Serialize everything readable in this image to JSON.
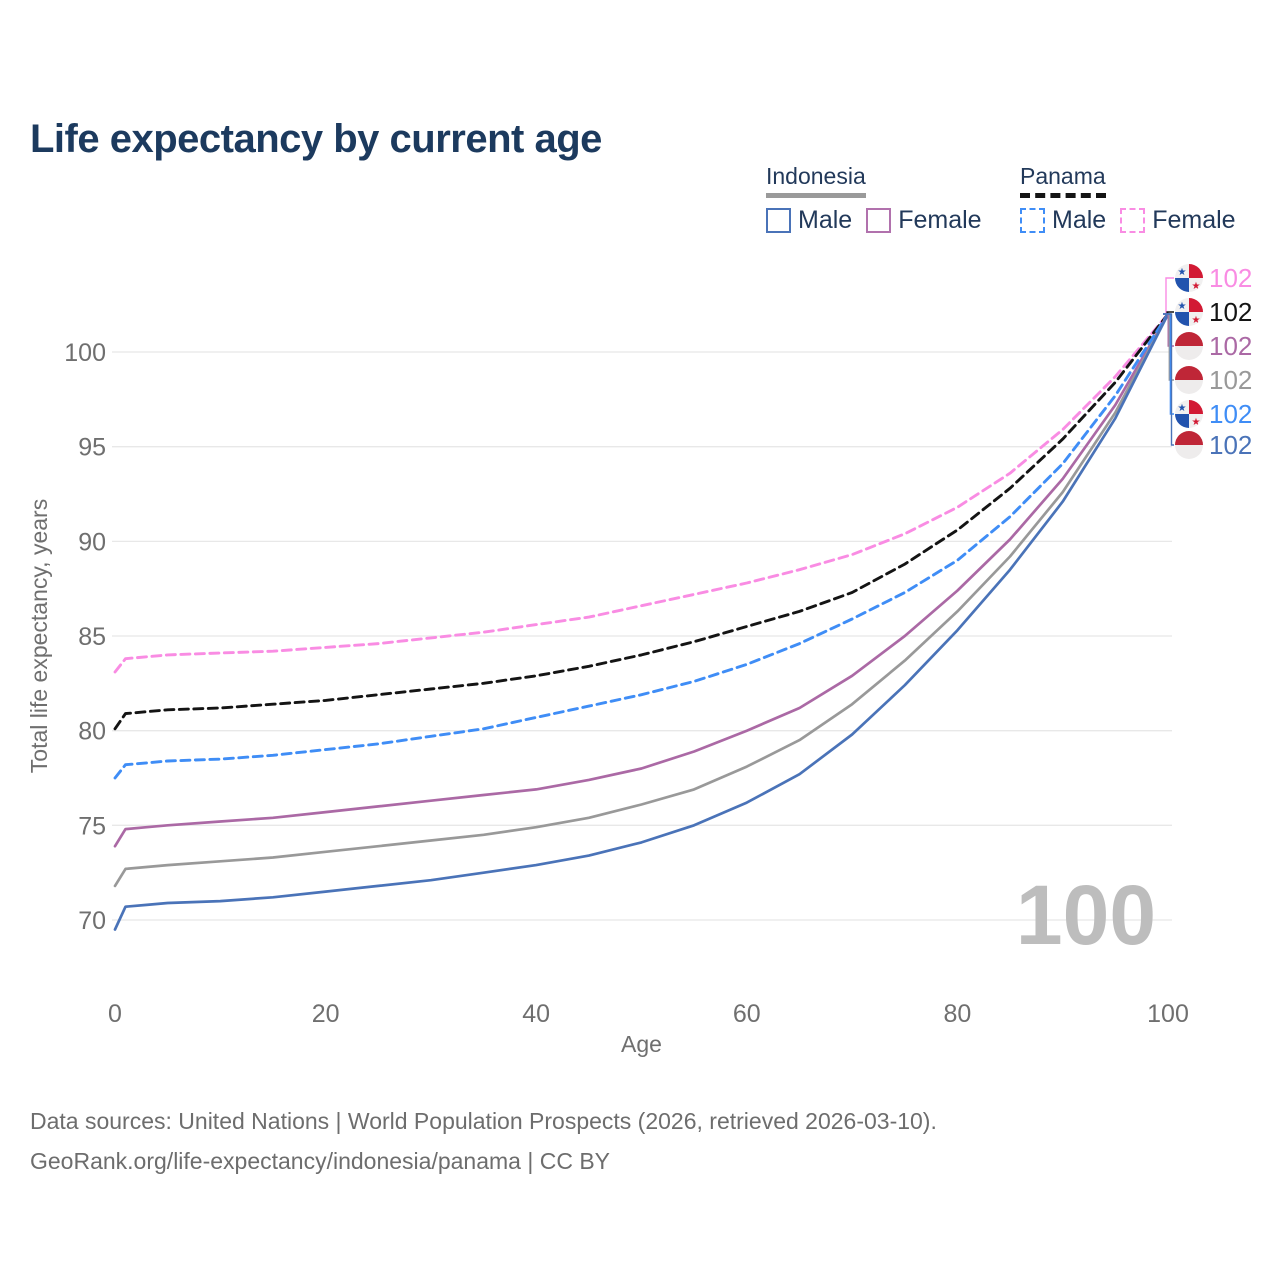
{
  "title": "Life expectancy by current age",
  "legend": {
    "groups": [
      {
        "label": "Indonesia",
        "style": "solid",
        "color": "#9a9a9a",
        "items": [
          {
            "label": "Male",
            "color": "#4a73b8",
            "style": "solid"
          },
          {
            "label": "Female",
            "color": "#b171ad",
            "style": "solid"
          }
        ]
      },
      {
        "label": "Panama",
        "style": "dashed",
        "color": "#141414",
        "items": [
          {
            "label": "Male",
            "color": "#3f8df6",
            "style": "dashed"
          },
          {
            "label": "Female",
            "color": "#f98ce3",
            "style": "dashed"
          }
        ]
      }
    ]
  },
  "chart_data": {
    "type": "line",
    "title": "Life expectancy by current age",
    "xlabel": "Age",
    "ylabel": "Total life expectancy, years",
    "xlim": [
      0,
      100
    ],
    "ylim": [
      68,
      104
    ],
    "x_ticks": [
      0,
      20,
      40,
      60,
      80,
      100
    ],
    "y_ticks": [
      70,
      75,
      80,
      85,
      90,
      95,
      100
    ],
    "grid": "horizontal-only",
    "age_indicator": "100",
    "x": [
      0,
      1,
      3,
      5,
      10,
      15,
      20,
      25,
      30,
      35,
      40,
      45,
      50,
      55,
      60,
      65,
      70,
      75,
      80,
      85,
      90,
      95,
      100
    ],
    "series": [
      {
        "name": "Panama Female",
        "country": "Panama",
        "gender": "female",
        "color": "#f98ce3",
        "dash": true,
        "flag": "panama",
        "end_label": "102",
        "values": [
          83.1,
          83.8,
          83.9,
          84.0,
          84.1,
          84.2,
          84.4,
          84.6,
          84.9,
          85.2,
          85.6,
          86.0,
          86.6,
          87.2,
          87.8,
          88.5,
          89.3,
          90.4,
          91.8,
          93.6,
          95.9,
          98.7,
          102
        ]
      },
      {
        "name": "Panama",
        "country": "Panama",
        "gender": "both",
        "color": "#141414",
        "dash": true,
        "flag": "panama",
        "end_label": "102",
        "values": [
          80.1,
          80.9,
          81.0,
          81.1,
          81.2,
          81.4,
          81.6,
          81.9,
          82.2,
          82.5,
          82.9,
          83.4,
          84.0,
          84.7,
          85.5,
          86.3,
          87.3,
          88.8,
          90.6,
          92.8,
          95.4,
          98.4,
          102
        ]
      },
      {
        "name": "Indonesia Female",
        "country": "Indonesia",
        "gender": "female",
        "color": "#ab69a5",
        "dash": false,
        "flag": "indonesia",
        "end_label": "102",
        "values": [
          73.9,
          74.8,
          74.9,
          75.0,
          75.2,
          75.4,
          75.7,
          76.0,
          76.3,
          76.6,
          76.9,
          77.4,
          78.0,
          78.9,
          80.0,
          81.2,
          82.9,
          85.0,
          87.4,
          90.1,
          93.3,
          97.2,
          102
        ]
      },
      {
        "name": "Indonesia",
        "country": "Indonesia",
        "gender": "both",
        "color": "#999999",
        "dash": false,
        "flag": "indonesia",
        "end_label": "102",
        "values": [
          71.8,
          72.7,
          72.8,
          72.9,
          73.1,
          73.3,
          73.6,
          73.9,
          74.2,
          74.5,
          74.9,
          75.4,
          76.1,
          76.9,
          78.1,
          79.5,
          81.4,
          83.7,
          86.3,
          89.2,
          92.6,
          96.8,
          102
        ]
      },
      {
        "name": "Panama Male",
        "country": "Panama",
        "gender": "male",
        "color": "#3f8df6",
        "dash": true,
        "flag": "panama",
        "end_label": "102",
        "values": [
          77.5,
          78.2,
          78.3,
          78.4,
          78.5,
          78.7,
          79.0,
          79.3,
          79.7,
          80.1,
          80.7,
          81.3,
          81.9,
          82.6,
          83.5,
          84.6,
          85.9,
          87.3,
          89.0,
          91.3,
          94.1,
          97.7,
          102
        ]
      },
      {
        "name": "Indonesia Male",
        "country": "Indonesia",
        "gender": "male",
        "color": "#4a73b8",
        "dash": false,
        "flag": "indonesia",
        "end_label": "102",
        "values": [
          69.5,
          70.7,
          70.8,
          70.9,
          71.0,
          71.2,
          71.5,
          71.8,
          72.1,
          72.5,
          72.9,
          73.4,
          74.1,
          75.0,
          76.2,
          77.7,
          79.8,
          82.4,
          85.3,
          88.5,
          92.1,
          96.5,
          102
        ]
      }
    ]
  },
  "footer": {
    "line1": "Data sources: United Nations | World Population Prospects (2026, retrieved 2026-03-10).",
    "line2": "GeoRank.org/life-expectancy/indonesia/panama | CC BY"
  }
}
